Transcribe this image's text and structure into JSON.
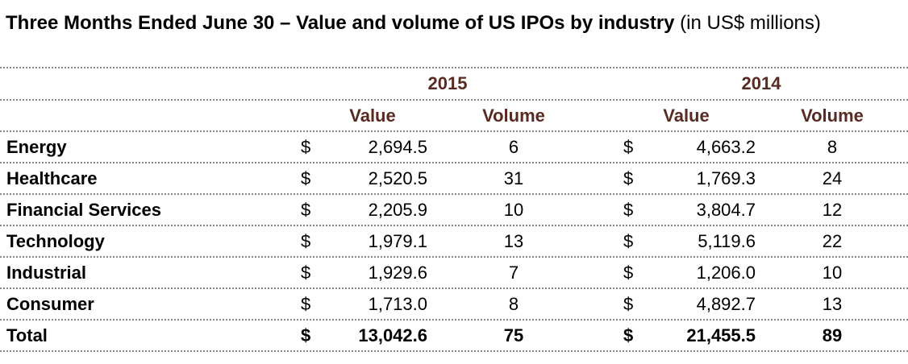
{
  "title": {
    "bold": "Three Months Ended June 30 – Value and volume of US IPOs by industry",
    "normal": " (in US$ millions)"
  },
  "years": [
    "2015",
    "2014"
  ],
  "columns": {
    "value": "Value",
    "volume": "Volume"
  },
  "currency": "$",
  "rows": [
    {
      "industry": "Energy",
      "v2015": "2,694.5",
      "n2015": "6",
      "v2014": "4,663.2",
      "n2014": "8"
    },
    {
      "industry": "Healthcare",
      "v2015": "2,520.5",
      "n2015": "31",
      "v2014": "1,769.3",
      "n2014": "24"
    },
    {
      "industry": "Financial Services",
      "v2015": "2,205.9",
      "n2015": "10",
      "v2014": "3,804.7",
      "n2014": "12"
    },
    {
      "industry": "Technology",
      "v2015": "1,979.1",
      "n2015": "13",
      "v2014": "5,119.6",
      "n2014": "22"
    },
    {
      "industry": "Industrial",
      "v2015": "1,929.6",
      "n2015": "7",
      "v2014": "1,206.0",
      "n2014": "10"
    },
    {
      "industry": "Consumer",
      "v2015": "1,713.0",
      "n2015": "8",
      "v2014": "4,892.7",
      "n2014": "13"
    }
  ],
  "total": {
    "industry": "Total",
    "v2015": "13,042.6",
    "n2015": "75",
    "v2014": "21,455.5",
    "n2014": "89"
  }
}
